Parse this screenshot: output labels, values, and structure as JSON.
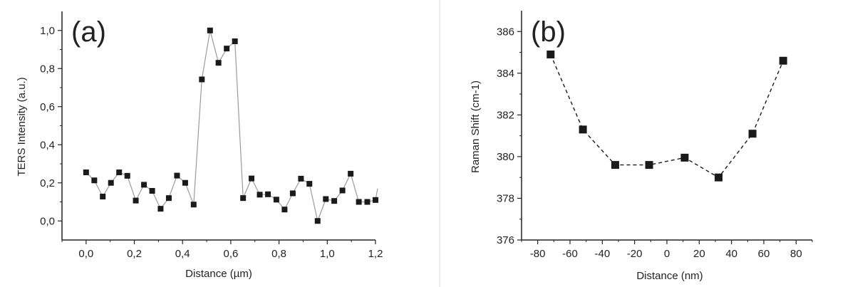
{
  "chart_data": [
    {
      "type": "line",
      "panel_label": "(a)",
      "xlabel": "Distance (µm)",
      "ylabel": "TERS Intensity (a.u.)",
      "xlim": [
        -0.1,
        1.2
      ],
      "ylim": [
        -0.1,
        1.1
      ],
      "xticks": [
        0.0,
        0.2,
        0.4,
        0.6,
        0.8,
        1.0,
        1.2
      ],
      "xtick_labels": [
        "0,0",
        "0,2",
        "0,4",
        "0,6",
        "0,8",
        "1,0",
        "1,2"
      ],
      "yticks": [
        0.0,
        0.2,
        0.4,
        0.6,
        0.8,
        1.0
      ],
      "ytick_labels": [
        "0,0",
        "0,2",
        "0,4",
        "0,6",
        "0,8",
        "1,0"
      ],
      "line_color": "#9a9a9a",
      "marker_color": "#1a1a1a",
      "x": [
        0.0,
        0.034,
        0.069,
        0.103,
        0.137,
        0.171,
        0.206,
        0.24,
        0.274,
        0.309,
        0.343,
        0.377,
        0.411,
        0.446,
        0.48,
        0.514,
        0.549,
        0.583,
        0.617,
        0.651,
        0.686,
        0.72,
        0.754,
        0.789,
        0.823,
        0.857,
        0.891,
        0.926,
        0.96,
        0.994,
        1.029,
        1.063,
        1.097,
        1.131,
        1.166,
        1.2
      ],
      "y": [
        0.255,
        0.213,
        0.128,
        0.2,
        0.255,
        0.237,
        0.107,
        0.19,
        0.158,
        0.064,
        0.12,
        0.238,
        0.2,
        0.086,
        0.743,
        1.0,
        0.83,
        0.905,
        0.943,
        0.12,
        0.223,
        0.138,
        0.14,
        0.112,
        0.06,
        0.145,
        0.222,
        0.195,
        0.0,
        0.115,
        0.105,
        0.16,
        0.248,
        0.1,
        0.1,
        0.11
      ],
      "tail": {
        "x": 1.2,
        "y": 0.17
      }
    },
    {
      "type": "line",
      "panel_label": "(b)",
      "xlabel": "Distance (nm)",
      "ylabel": "Raman Shift (cm-1)",
      "xlim": [
        -90,
        90
      ],
      "ylim": [
        376,
        387
      ],
      "xticks": [
        -80,
        -60,
        -40,
        -20,
        0,
        20,
        40,
        60,
        80
      ],
      "xtick_labels": [
        "-80",
        "-60",
        "-40",
        "-20",
        "0",
        "20",
        "40",
        "60",
        "80"
      ],
      "yticks": [
        376,
        378,
        380,
        382,
        384,
        386
      ],
      "ytick_labels": [
        "376",
        "378",
        "380",
        "382",
        "384",
        "386"
      ],
      "line_style": "dashed",
      "line_color": "#1a1a1a",
      "marker_color": "#1a1a1a",
      "x": [
        -72,
        -52,
        -32,
        -11,
        11,
        32,
        53,
        72
      ],
      "y": [
        384.9,
        381.3,
        379.6,
        379.6,
        379.95,
        379.0,
        381.1,
        384.6
      ]
    }
  ]
}
